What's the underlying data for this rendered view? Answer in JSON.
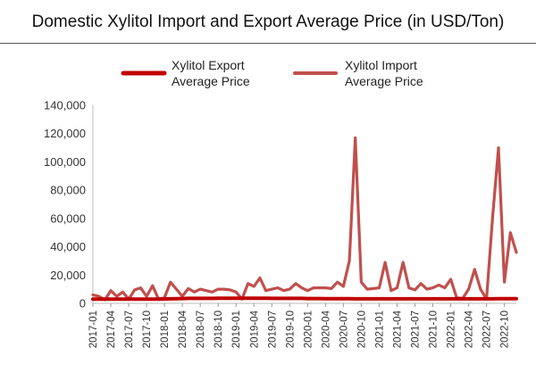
{
  "title": "Domestic Xylitol Import and Export Average Price (in USD/Ton)",
  "chart_data": {
    "type": "line",
    "title": "Domestic Xylitol Import and Export Average Price (in USD/Ton)",
    "xlabel": "",
    "ylabel": "",
    "ylim": [
      0,
      140000
    ],
    "yticks": [
      0,
      20000,
      40000,
      60000,
      80000,
      100000,
      120000,
      140000
    ],
    "ytick_labels": [
      "0",
      "20,000",
      "40,000",
      "60,000",
      "80,000",
      "100,000",
      "120,000",
      "140,000"
    ],
    "legend_position": "top",
    "grid": false,
    "x_tick_labels": [
      "2017-01",
      "2017-04",
      "2017-07",
      "2017-10",
      "2018-01",
      "2018-04",
      "2018-07",
      "2018-10",
      "2019-01",
      "2019-04",
      "2019-07",
      "2019-10",
      "2020-01",
      "2020-04",
      "2020-07",
      "2020-10",
      "2021-01",
      "2021-04",
      "2021-07",
      "2021-10",
      "2022-01",
      "2022-04",
      "2022-07",
      "2022-10"
    ],
    "x": [
      "2017-01",
      "2017-02",
      "2017-03",
      "2017-04",
      "2017-05",
      "2017-06",
      "2017-07",
      "2017-08",
      "2017-09",
      "2017-10",
      "2017-11",
      "2017-12",
      "2018-01",
      "2018-02",
      "2018-03",
      "2018-04",
      "2018-05",
      "2018-06",
      "2018-07",
      "2018-08",
      "2018-09",
      "2018-10",
      "2018-11",
      "2018-12",
      "2019-01",
      "2019-02",
      "2019-03",
      "2019-04",
      "2019-05",
      "2019-06",
      "2019-07",
      "2019-08",
      "2019-09",
      "2019-10",
      "2019-11",
      "2019-12",
      "2020-01",
      "2020-02",
      "2020-03",
      "2020-04",
      "2020-05",
      "2020-06",
      "2020-07",
      "2020-08",
      "2020-09",
      "2020-10",
      "2020-11",
      "2020-12",
      "2021-01",
      "2021-02",
      "2021-03",
      "2021-04",
      "2021-05",
      "2021-06",
      "2021-07",
      "2021-08",
      "2021-09",
      "2021-10",
      "2021-11",
      "2021-12",
      "2022-01",
      "2022-02",
      "2022-03",
      "2022-04",
      "2022-05",
      "2022-06",
      "2022-07",
      "2022-08",
      "2022-09",
      "2022-10",
      "2022-11",
      "2022-12"
    ],
    "series": [
      {
        "name": "Xylitol Export Average Price",
        "color": "#c00000",
        "values": [
          3000,
          3000,
          3000,
          3000,
          3000,
          3000,
          3000,
          3000,
          3000,
          3000,
          3000,
          3000,
          3100,
          3200,
          3300,
          3400,
          3500,
          3500,
          3500,
          3500,
          3500,
          3600,
          3600,
          3600,
          3600,
          3600,
          3600,
          3600,
          3600,
          3600,
          3500,
          3500,
          3500,
          3500,
          3500,
          3500,
          3400,
          3400,
          3400,
          3300,
          3300,
          3300,
          3300,
          3300,
          3200,
          3200,
          3200,
          3200,
          3200,
          3200,
          3200,
          3200,
          3200,
          3200,
          3200,
          3200,
          3200,
          3200,
          3200,
          3200,
          3200,
          3200,
          3200,
          3200,
          3200,
          3200,
          3200,
          3200,
          3300,
          3300,
          3300,
          3300
        ]
      },
      {
        "name": "Xylitol Import Average Price",
        "color": "#c0504d",
        "values": [
          6000,
          5000,
          2500,
          9000,
          5000,
          8000,
          3000,
          9500,
          11000,
          5000,
          12500,
          3000,
          4000,
          15000,
          10000,
          5000,
          10500,
          8000,
          10000,
          9000,
          8000,
          10000,
          10000,
          9500,
          8000,
          3000,
          14000,
          12000,
          18000,
          9000,
          10000,
          11000,
          9000,
          10000,
          14000,
          11000,
          9000,
          11000,
          11000,
          11000,
          10500,
          15000,
          12000,
          30000,
          117000,
          15000,
          10000,
          10500,
          11000,
          29000,
          9000,
          11000,
          29000,
          11000,
          9500,
          14000,
          10000,
          11000,
          13000,
          11000,
          17000,
          4000,
          3500,
          10000,
          24000,
          10000,
          3000,
          60000,
          110000,
          15000,
          50000,
          36000
        ]
      }
    ]
  }
}
